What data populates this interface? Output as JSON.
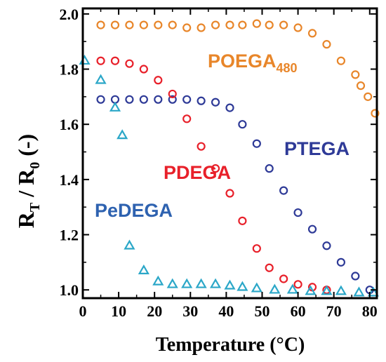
{
  "chart_data": {
    "type": "scatter",
    "title": "",
    "xlabel": "Temperature (°C)",
    "ylabel": {
      "main": "R",
      "sub1": "T",
      "mid": " / R",
      "sub2": "0",
      "tail": " (-)"
    },
    "xlim": [
      0,
      82
    ],
    "ylim": [
      0.97,
      2.02
    ],
    "xticks": [
      0,
      10,
      20,
      30,
      40,
      50,
      60,
      70,
      80
    ],
    "yticks": [
      1.0,
      1.2,
      1.4,
      1.6,
      1.8,
      2.0
    ],
    "ytick_labels": [
      "1.0",
      "1.2",
      "1.4",
      "1.6",
      "1.8",
      "2.0"
    ],
    "grid": false,
    "series": [
      {
        "name": "POEGA",
        "name_sub": "480",
        "color": "#E8862A",
        "marker": "circle",
        "x": [
          5,
          9,
          13,
          17,
          21,
          25,
          29,
          33,
          37,
          41,
          44.5,
          48.5,
          52,
          56,
          60,
          64,
          68,
          72,
          76,
          77.5,
          79.5,
          81.5
        ],
        "y": [
          1.96,
          1.96,
          1.96,
          1.96,
          1.96,
          1.96,
          1.95,
          1.95,
          1.96,
          1.96,
          1.96,
          1.965,
          1.96,
          1.96,
          1.95,
          1.93,
          1.89,
          1.83,
          1.78,
          1.74,
          1.7,
          1.64
        ]
      },
      {
        "name": "PTEGA",
        "color": "#2E3A97",
        "marker": "circle",
        "x": [
          5,
          9,
          13,
          17,
          21,
          25,
          29,
          33,
          37,
          41,
          44.5,
          48.5,
          52,
          56,
          60,
          64,
          68,
          72,
          76,
          80
        ],
        "y": [
          1.69,
          1.69,
          1.69,
          1.69,
          1.69,
          1.69,
          1.69,
          1.685,
          1.68,
          1.66,
          1.6,
          1.53,
          1.44,
          1.36,
          1.28,
          1.22,
          1.16,
          1.1,
          1.05,
          1.0
        ]
      },
      {
        "name": "PDEGA",
        "color": "#E8202A",
        "marker": "circle",
        "x": [
          5,
          9,
          13,
          17,
          21,
          25,
          29,
          33,
          37,
          41,
          44.5,
          48.5,
          52,
          56,
          60,
          64,
          68
        ],
        "y": [
          1.83,
          1.83,
          1.82,
          1.8,
          1.76,
          1.71,
          1.62,
          1.52,
          1.44,
          1.35,
          1.25,
          1.15,
          1.08,
          1.04,
          1.02,
          1.01,
          1.0
        ]
      },
      {
        "name": "PeDEGA",
        "color": "#2BA7C8",
        "marker": "triangle",
        "x": [
          0.5,
          5,
          9,
          11,
          13,
          17,
          21,
          25,
          29,
          33,
          37,
          41,
          44.5,
          48.5,
          53.5,
          58.5,
          63.5,
          68,
          72,
          77,
          81
        ],
        "y": [
          1.83,
          1.76,
          1.66,
          1.56,
          1.16,
          1.07,
          1.03,
          1.02,
          1.02,
          1.02,
          1.02,
          1.015,
          1.01,
          1.005,
          1.0,
          1.0,
          0.995,
          0.995,
          0.995,
          0.99,
          0.99
        ]
      }
    ]
  },
  "series_labels": {
    "poega": "POEGA",
    "poega_sub": "480",
    "ptega": "PTEGA",
    "pdega": "PDEGA",
    "pedega": "PeDEGA"
  }
}
